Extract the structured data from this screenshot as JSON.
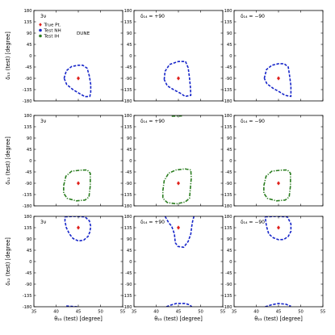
{
  "chart_data": {
    "type": "line",
    "grid": false,
    "rows": 3,
    "cols": 3,
    "xlim": [
      35,
      55
    ],
    "ylim": [
      -180,
      180
    ],
    "xticks": [
      35,
      40,
      45,
      50,
      55
    ],
    "xtick_labels": [
      "35",
      "40",
      "45",
      "50",
      "55"
    ],
    "yticks": [
      -180,
      -135,
      -90,
      -45,
      0,
      45,
      90,
      135,
      180
    ],
    "ytick_labels": [
      "-180",
      "-135",
      "-90",
      "-45",
      "0",
      "45",
      "90",
      "135",
      "180"
    ],
    "xlabel": "θ₂₃ (test) [degree]",
    "ylabel_rows": [
      "δ₁₃ (test) [degree]",
      "δ₁₂ (test) [degree]",
      "δ₁₂ (test) [degree]"
    ],
    "col_titles": [
      "3ν",
      "δ₁₄ = +90",
      "δ₁₄ = −90"
    ],
    "experiment_label": "DUNE",
    "true_point": {
      "x": 45,
      "y_by_row": [
        -90,
        -90,
        135
      ]
    },
    "legend": {
      "placement": "top-left",
      "entries": [
        {
          "label": "True Pt.",
          "color": "#e0201b",
          "marker": "diamond"
        },
        {
          "label": "Test NH",
          "color": "#1726c9",
          "marker": "dot"
        },
        {
          "label": "Test IH",
          "color": "#2a7d1f",
          "marker": "dot"
        }
      ]
    },
    "series": [
      {
        "row": 0,
        "col": 0,
        "color": "#1726c9",
        "style": "dashed",
        "points": [
          [
            41.8,
            -90
          ],
          [
            42.3,
            -60
          ],
          [
            43.5,
            -43
          ],
          [
            45,
            -38
          ],
          [
            46,
            -38
          ],
          [
            47,
            -50
          ],
          [
            47.5,
            -82
          ],
          [
            47.8,
            -115
          ],
          [
            47.8,
            -145
          ],
          [
            47.6,
            -162
          ],
          [
            46.5,
            -163
          ],
          [
            45.2,
            -150
          ],
          [
            43.8,
            -135
          ],
          [
            42.4,
            -115
          ],
          [
            41.8,
            -90
          ]
        ]
      },
      {
        "row": 0,
        "col": 1,
        "color": "#1726c9",
        "style": "dashed",
        "points": [
          [
            41.8,
            -95
          ],
          [
            42,
            -62
          ],
          [
            43,
            -35
          ],
          [
            45,
            -23
          ],
          [
            46.6,
            -23
          ],
          [
            47.2,
            -48
          ],
          [
            47.5,
            -88
          ],
          [
            47.7,
            -125
          ],
          [
            47.8,
            -158
          ],
          [
            46.5,
            -162
          ],
          [
            45.5,
            -150
          ],
          [
            44,
            -136
          ],
          [
            42.5,
            -120
          ],
          [
            41.8,
            -95
          ]
        ]
      },
      {
        "row": 0,
        "col": 2,
        "color": "#1726c9",
        "style": "dashed",
        "points": [
          [
            41.8,
            -90
          ],
          [
            42.3,
            -55
          ],
          [
            43.5,
            -38
          ],
          [
            45,
            -32
          ],
          [
            46.3,
            -32
          ],
          [
            47.2,
            -45
          ],
          [
            47.5,
            -80
          ],
          [
            47.8,
            -120
          ],
          [
            47.8,
            -162
          ],
          [
            46.5,
            -158
          ],
          [
            45.3,
            -145
          ],
          [
            43.8,
            -130
          ],
          [
            42.4,
            -112
          ],
          [
            41.8,
            -90
          ]
        ]
      },
      {
        "row": 1,
        "col": 0,
        "color": "#2a7d1f",
        "style": "dashdot",
        "points": [
          [
            41.7,
            -100
          ],
          [
            42.2,
            -62
          ],
          [
            43.5,
            -42
          ],
          [
            45.5,
            -38
          ],
          [
            47,
            -37
          ],
          [
            47.7,
            -50
          ],
          [
            47.7,
            -100
          ],
          [
            47.4,
            -145
          ],
          [
            46.5,
            -157
          ],
          [
            44.5,
            -160
          ],
          [
            42.5,
            -150
          ],
          [
            41.7,
            -130
          ],
          [
            41.7,
            -100
          ]
        ]
      },
      {
        "row": 1,
        "col": 1,
        "color": "#2a7d1f",
        "style": "dashdot",
        "points": [
          [
            41.5,
            -120
          ],
          [
            41.8,
            -80
          ],
          [
            42.8,
            -50
          ],
          [
            44.5,
            -37
          ],
          [
            46.5,
            -33
          ],
          [
            47.8,
            -37
          ],
          [
            47.9,
            -70
          ],
          [
            47.7,
            -110
          ],
          [
            47.5,
            -150
          ],
          [
            46.5,
            -165
          ],
          [
            44.5,
            -172
          ],
          [
            42.5,
            -167
          ],
          [
            41.5,
            -150
          ],
          [
            41.5,
            -120
          ]
        ]
      },
      {
        "row": 1,
        "col": 1,
        "color": "#2a7d1f",
        "style": "dashdot",
        "points": [
          [
            43.5,
            177
          ],
          [
            45.8,
            178
          ]
        ]
      },
      {
        "row": 1,
        "col": 2,
        "color": "#2a7d1f",
        "style": "dashdot",
        "points": [
          [
            41.7,
            -100
          ],
          [
            42.2,
            -62
          ],
          [
            43.5,
            -42
          ],
          [
            45.5,
            -38
          ],
          [
            47,
            -37
          ],
          [
            47.7,
            -50
          ],
          [
            47.7,
            -100
          ],
          [
            47.4,
            -145
          ],
          [
            46.5,
            -157
          ],
          [
            44.5,
            -160
          ],
          [
            42.5,
            -150
          ],
          [
            41.7,
            -130
          ],
          [
            41.7,
            -100
          ]
        ]
      },
      {
        "row": 2,
        "col": 0,
        "color": "#1726c9",
        "style": "dashed",
        "points": [
          [
            42,
            178
          ],
          [
            44,
            180
          ],
          [
            46.5,
            178
          ],
          [
            47.5,
            162
          ],
          [
            47.8,
            140
          ],
          [
            47.6,
            118
          ],
          [
            47.2,
            100
          ],
          [
            46.2,
            85
          ],
          [
            45,
            82
          ],
          [
            43.8,
            92
          ],
          [
            43,
            110
          ],
          [
            42.3,
            135
          ],
          [
            42,
            160
          ],
          [
            42,
            178
          ]
        ]
      },
      {
        "row": 2,
        "col": 0,
        "color": "#1726c9",
        "style": "dashed",
        "points": [
          [
            42.3,
            -177
          ],
          [
            44.8,
            -180
          ]
        ]
      },
      {
        "row": 2,
        "col": 1,
        "color": "#1726c9",
        "style": "dashed",
        "points": [
          [
            42,
            180
          ],
          [
            42.8,
            155
          ],
          [
            43.5,
            140
          ],
          [
            44.1,
            110
          ],
          [
            44.3,
            75
          ],
          [
            44.9,
            60
          ],
          [
            46.2,
            57
          ],
          [
            47.2,
            80
          ],
          [
            47.8,
            110
          ],
          [
            48,
            140
          ],
          [
            48.2,
            160
          ],
          [
            48.5,
            180
          ]
        ]
      },
      {
        "row": 2,
        "col": 1,
        "color": "#1726c9",
        "style": "dashed",
        "points": [
          [
            42.3,
            -180
          ],
          [
            43,
            -175
          ],
          [
            44.5,
            -167
          ],
          [
            46.5,
            -167
          ],
          [
            47.5,
            -172
          ],
          [
            48,
            -180
          ]
        ]
      },
      {
        "row": 2,
        "col": 2,
        "color": "#1726c9",
        "style": "dashed",
        "points": [
          [
            42,
            178
          ],
          [
            44.5,
            180
          ],
          [
            47,
            178
          ],
          [
            47.8,
            150
          ],
          [
            47.8,
            120
          ],
          [
            47.2,
            100
          ],
          [
            46.2,
            88
          ],
          [
            45,
            87
          ],
          [
            43.8,
            95
          ],
          [
            42.8,
            110
          ],
          [
            42.3,
            140
          ],
          [
            42,
            178
          ]
        ]
      },
      {
        "row": 2,
        "col": 2,
        "color": "#1726c9",
        "style": "dashed",
        "points": [
          [
            42,
            -180
          ],
          [
            43.5,
            -172
          ],
          [
            45,
            -167
          ],
          [
            46.7,
            -170
          ],
          [
            47.8,
            -178
          ]
        ]
      }
    ]
  }
}
